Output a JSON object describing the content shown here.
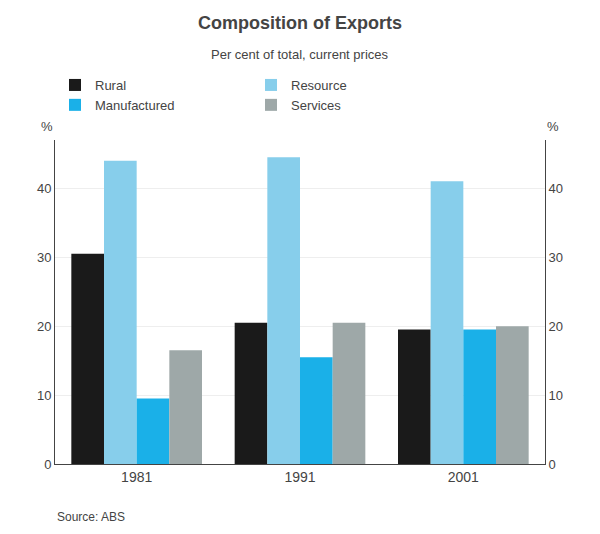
{
  "chart_data": {
    "type": "bar",
    "title": "Composition of Exports",
    "subtitle": "Per cent of total, current prices",
    "ylabel": "%",
    "y2label": "%",
    "annotations": [
      "Source: ABS"
    ],
    "categories": [
      "1981",
      "1991",
      "2001"
    ],
    "series": [
      {
        "name": "Rural",
        "color": "#1a1a1a",
        "values": [
          30.5,
          20.5,
          19.5
        ]
      },
      {
        "name": "Resource",
        "color": "#87ceeb",
        "values": [
          44.0,
          44.5,
          41.0
        ]
      },
      {
        "name": "Manufactured",
        "color": "#1ab0e8",
        "values": [
          9.5,
          15.5,
          19.5
        ]
      },
      {
        "name": "Services",
        "color": "#9ea8a8",
        "values": [
          16.5,
          20.5,
          20.0
        ]
      }
    ],
    "ylim": [
      0,
      47
    ],
    "yticks": [
      0,
      10,
      20,
      30,
      40
    ],
    "y2lim": [
      0,
      47
    ],
    "y2ticks": [
      0,
      10,
      20,
      30,
      40
    ],
    "grid": true,
    "legend": "top"
  }
}
